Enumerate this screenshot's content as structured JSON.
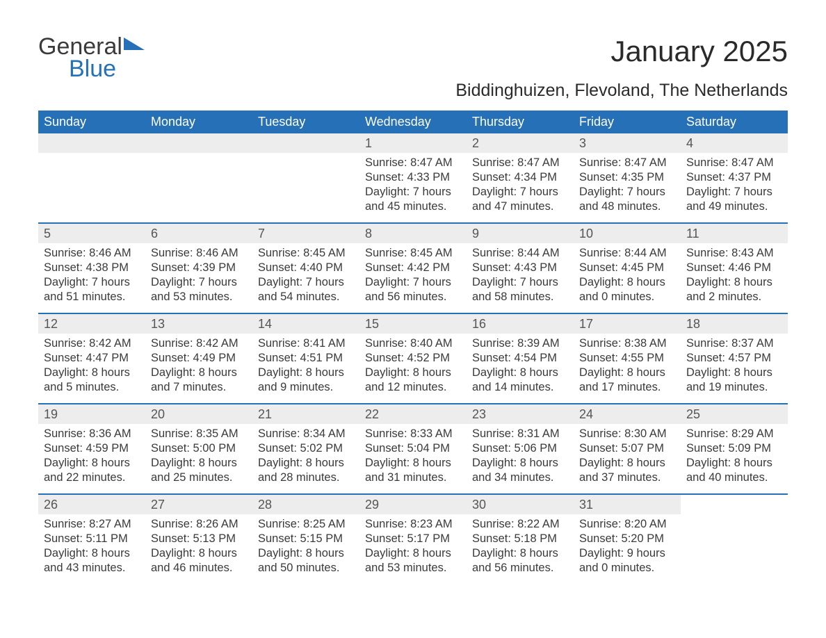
{
  "logo": {
    "general": "General",
    "blue": "Blue",
    "accent_color": "#2670b7"
  },
  "title": "January 2025",
  "location": "Biddinghuizen, Flevoland, The Netherlands",
  "colors": {
    "header_bg": "#2670b7",
    "header_text": "#ffffff",
    "daynum_bg": "#ededed",
    "body_text": "#3a3a3a",
    "week_border": "#2670b7"
  },
  "fonts": {
    "title_size": 42,
    "location_size": 25,
    "dayhead_size": 18,
    "body_size": 16
  },
  "day_headers": [
    "Sunday",
    "Monday",
    "Tuesday",
    "Wednesday",
    "Thursday",
    "Friday",
    "Saturday"
  ],
  "weeks": [
    [
      {
        "blank": true
      },
      {
        "blank": true
      },
      {
        "blank": true
      },
      {
        "n": "1",
        "sr": "Sunrise: 8:47 AM",
        "ss": "Sunset: 4:33 PM",
        "d1": "Daylight: 7 hours",
        "d2": "and 45 minutes."
      },
      {
        "n": "2",
        "sr": "Sunrise: 8:47 AM",
        "ss": "Sunset: 4:34 PM",
        "d1": "Daylight: 7 hours",
        "d2": "and 47 minutes."
      },
      {
        "n": "3",
        "sr": "Sunrise: 8:47 AM",
        "ss": "Sunset: 4:35 PM",
        "d1": "Daylight: 7 hours",
        "d2": "and 48 minutes."
      },
      {
        "n": "4",
        "sr": "Sunrise: 8:47 AM",
        "ss": "Sunset: 4:37 PM",
        "d1": "Daylight: 7 hours",
        "d2": "and 49 minutes."
      }
    ],
    [
      {
        "n": "5",
        "sr": "Sunrise: 8:46 AM",
        "ss": "Sunset: 4:38 PM",
        "d1": "Daylight: 7 hours",
        "d2": "and 51 minutes."
      },
      {
        "n": "6",
        "sr": "Sunrise: 8:46 AM",
        "ss": "Sunset: 4:39 PM",
        "d1": "Daylight: 7 hours",
        "d2": "and 53 minutes."
      },
      {
        "n": "7",
        "sr": "Sunrise: 8:45 AM",
        "ss": "Sunset: 4:40 PM",
        "d1": "Daylight: 7 hours",
        "d2": "and 54 minutes."
      },
      {
        "n": "8",
        "sr": "Sunrise: 8:45 AM",
        "ss": "Sunset: 4:42 PM",
        "d1": "Daylight: 7 hours",
        "d2": "and 56 minutes."
      },
      {
        "n": "9",
        "sr": "Sunrise: 8:44 AM",
        "ss": "Sunset: 4:43 PM",
        "d1": "Daylight: 7 hours",
        "d2": "and 58 minutes."
      },
      {
        "n": "10",
        "sr": "Sunrise: 8:44 AM",
        "ss": "Sunset: 4:45 PM",
        "d1": "Daylight: 8 hours",
        "d2": "and 0 minutes."
      },
      {
        "n": "11",
        "sr": "Sunrise: 8:43 AM",
        "ss": "Sunset: 4:46 PM",
        "d1": "Daylight: 8 hours",
        "d2": "and 2 minutes."
      }
    ],
    [
      {
        "n": "12",
        "sr": "Sunrise: 8:42 AM",
        "ss": "Sunset: 4:47 PM",
        "d1": "Daylight: 8 hours",
        "d2": "and 5 minutes."
      },
      {
        "n": "13",
        "sr": "Sunrise: 8:42 AM",
        "ss": "Sunset: 4:49 PM",
        "d1": "Daylight: 8 hours",
        "d2": "and 7 minutes."
      },
      {
        "n": "14",
        "sr": "Sunrise: 8:41 AM",
        "ss": "Sunset: 4:51 PM",
        "d1": "Daylight: 8 hours",
        "d2": "and 9 minutes."
      },
      {
        "n": "15",
        "sr": "Sunrise: 8:40 AM",
        "ss": "Sunset: 4:52 PM",
        "d1": "Daylight: 8 hours",
        "d2": "and 12 minutes."
      },
      {
        "n": "16",
        "sr": "Sunrise: 8:39 AM",
        "ss": "Sunset: 4:54 PM",
        "d1": "Daylight: 8 hours",
        "d2": "and 14 minutes."
      },
      {
        "n": "17",
        "sr": "Sunrise: 8:38 AM",
        "ss": "Sunset: 4:55 PM",
        "d1": "Daylight: 8 hours",
        "d2": "and 17 minutes."
      },
      {
        "n": "18",
        "sr": "Sunrise: 8:37 AM",
        "ss": "Sunset: 4:57 PM",
        "d1": "Daylight: 8 hours",
        "d2": "and 19 minutes."
      }
    ],
    [
      {
        "n": "19",
        "sr": "Sunrise: 8:36 AM",
        "ss": "Sunset: 4:59 PM",
        "d1": "Daylight: 8 hours",
        "d2": "and 22 minutes."
      },
      {
        "n": "20",
        "sr": "Sunrise: 8:35 AM",
        "ss": "Sunset: 5:00 PM",
        "d1": "Daylight: 8 hours",
        "d2": "and 25 minutes."
      },
      {
        "n": "21",
        "sr": "Sunrise: 8:34 AM",
        "ss": "Sunset: 5:02 PM",
        "d1": "Daylight: 8 hours",
        "d2": "and 28 minutes."
      },
      {
        "n": "22",
        "sr": "Sunrise: 8:33 AM",
        "ss": "Sunset: 5:04 PM",
        "d1": "Daylight: 8 hours",
        "d2": "and 31 minutes."
      },
      {
        "n": "23",
        "sr": "Sunrise: 8:31 AM",
        "ss": "Sunset: 5:06 PM",
        "d1": "Daylight: 8 hours",
        "d2": "and 34 minutes."
      },
      {
        "n": "24",
        "sr": "Sunrise: 8:30 AM",
        "ss": "Sunset: 5:07 PM",
        "d1": "Daylight: 8 hours",
        "d2": "and 37 minutes."
      },
      {
        "n": "25",
        "sr": "Sunrise: 8:29 AM",
        "ss": "Sunset: 5:09 PM",
        "d1": "Daylight: 8 hours",
        "d2": "and 40 minutes."
      }
    ],
    [
      {
        "n": "26",
        "sr": "Sunrise: 8:27 AM",
        "ss": "Sunset: 5:11 PM",
        "d1": "Daylight: 8 hours",
        "d2": "and 43 minutes."
      },
      {
        "n": "27",
        "sr": "Sunrise: 8:26 AM",
        "ss": "Sunset: 5:13 PM",
        "d1": "Daylight: 8 hours",
        "d2": "and 46 minutes."
      },
      {
        "n": "28",
        "sr": "Sunrise: 8:25 AM",
        "ss": "Sunset: 5:15 PM",
        "d1": "Daylight: 8 hours",
        "d2": "and 50 minutes."
      },
      {
        "n": "29",
        "sr": "Sunrise: 8:23 AM",
        "ss": "Sunset: 5:17 PM",
        "d1": "Daylight: 8 hours",
        "d2": "and 53 minutes."
      },
      {
        "n": "30",
        "sr": "Sunrise: 8:22 AM",
        "ss": "Sunset: 5:18 PM",
        "d1": "Daylight: 8 hours",
        "d2": "and 56 minutes."
      },
      {
        "n": "31",
        "sr": "Sunrise: 8:20 AM",
        "ss": "Sunset: 5:20 PM",
        "d1": "Daylight: 9 hours",
        "d2": "and 0 minutes."
      },
      {
        "blank": true,
        "noshade": true
      }
    ]
  ]
}
